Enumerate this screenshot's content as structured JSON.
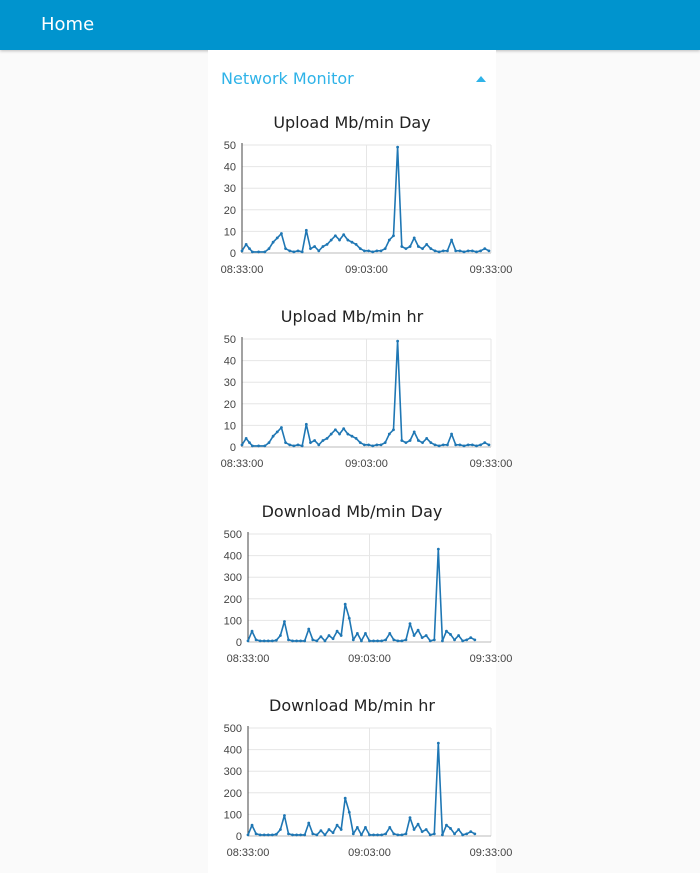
{
  "header": {
    "title": "Home"
  },
  "group": {
    "title": "Network Monitor",
    "collapse_icon": "caret-up-icon",
    "accent": "#2fb3e8"
  },
  "colors": {
    "topbar": "#0094ce",
    "series": "#1f77b4"
  },
  "charts": [
    {
      "title": "Upload Mb/min Day",
      "chart_data": {
        "type": "line",
        "title": "Upload Mb/min Day",
        "xlabel": "",
        "ylabel": "",
        "x_ticks": [
          "08:33:00",
          "09:03:00",
          "09:33:00"
        ],
        "x_range": [
          0,
          60
        ],
        "ylim": [
          0,
          50
        ],
        "y_ticks": [
          0,
          10,
          20,
          30,
          40,
          50
        ],
        "grid": true,
        "series": [
          {
            "values": [
              [
                0,
                1
              ],
              [
                1,
                4
              ],
              [
                1.8,
                2
              ],
              [
                2.5,
                0.5
              ],
              [
                4,
                0.5
              ],
              [
                5.5,
                0.5
              ],
              [
                6.5,
                2
              ],
              [
                7.5,
                5
              ],
              [
                8.5,
                7
              ],
              [
                9.5,
                9
              ],
              [
                10.5,
                2
              ],
              [
                11.5,
                1
              ],
              [
                12.5,
                0.5
              ],
              [
                13.5,
                1
              ],
              [
                14.5,
                0.5
              ],
              [
                15.5,
                10.5
              ],
              [
                16.5,
                2
              ],
              [
                17.5,
                3
              ],
              [
                18.5,
                1
              ],
              [
                19.5,
                3
              ],
              [
                20.5,
                4
              ],
              [
                21.5,
                6
              ],
              [
                22.5,
                8
              ],
              [
                23.5,
                6
              ],
              [
                24.5,
                8.5
              ],
              [
                25.5,
                6
              ],
              [
                26.5,
                5
              ],
              [
                27.5,
                4
              ],
              [
                28.5,
                2
              ],
              [
                29.5,
                1
              ],
              [
                30.5,
                1
              ],
              [
                31.5,
                0.5
              ],
              [
                32.5,
                1
              ],
              [
                33.5,
                1
              ],
              [
                34.5,
                2
              ],
              [
                35.5,
                6
              ],
              [
                36.5,
                8
              ],
              [
                37.5,
                49
              ],
              [
                38.5,
                3
              ],
              [
                39.5,
                2
              ],
              [
                40.5,
                3
              ],
              [
                41.5,
                7
              ],
              [
                42.5,
                3
              ],
              [
                43.5,
                2
              ],
              [
                44.5,
                4
              ],
              [
                45.5,
                2
              ],
              [
                46.5,
                1
              ],
              [
                47.5,
                0.5
              ],
              [
                48.5,
                1
              ],
              [
                49.5,
                1
              ],
              [
                50.5,
                6
              ],
              [
                51.5,
                1
              ],
              [
                52.5,
                1
              ],
              [
                53.5,
                0.5
              ],
              [
                54.5,
                1
              ],
              [
                55.5,
                1
              ],
              [
                56.5,
                0.5
              ],
              [
                57.5,
                1
              ],
              [
                58.5,
                2
              ],
              [
                59.5,
                1
              ]
            ]
          }
        ]
      }
    },
    {
      "title": "Upload Mb/min hr",
      "chart_data": {
        "type": "line",
        "title": "Upload Mb/min hr",
        "xlabel": "",
        "ylabel": "",
        "x_ticks": [
          "08:33:00",
          "09:03:00",
          "09:33:00"
        ],
        "x_range": [
          0,
          60
        ],
        "ylim": [
          0,
          50
        ],
        "y_ticks": [
          0,
          10,
          20,
          30,
          40,
          50
        ],
        "grid": true,
        "series": [
          {
            "values": [
              [
                0,
                1
              ],
              [
                1,
                4
              ],
              [
                1.8,
                2
              ],
              [
                2.5,
                0.5
              ],
              [
                4,
                0.5
              ],
              [
                5.5,
                0.5
              ],
              [
                6.5,
                2
              ],
              [
                7.5,
                5
              ],
              [
                8.5,
                7
              ],
              [
                9.5,
                9
              ],
              [
                10.5,
                2
              ],
              [
                11.5,
                1
              ],
              [
                12.5,
                0.5
              ],
              [
                13.5,
                1
              ],
              [
                14.5,
                0.5
              ],
              [
                15.5,
                10.5
              ],
              [
                16.5,
                2
              ],
              [
                17.5,
                3
              ],
              [
                18.5,
                1
              ],
              [
                19.5,
                3
              ],
              [
                20.5,
                4
              ],
              [
                21.5,
                6
              ],
              [
                22.5,
                8
              ],
              [
                23.5,
                6
              ],
              [
                24.5,
                8.5
              ],
              [
                25.5,
                6
              ],
              [
                26.5,
                5
              ],
              [
                27.5,
                4
              ],
              [
                28.5,
                2
              ],
              [
                29.5,
                1
              ],
              [
                30.5,
                1
              ],
              [
                31.5,
                0.5
              ],
              [
                32.5,
                1
              ],
              [
                33.5,
                1
              ],
              [
                34.5,
                2
              ],
              [
                35.5,
                6
              ],
              [
                36.5,
                8
              ],
              [
                37.5,
                49
              ],
              [
                38.5,
                3
              ],
              [
                39.5,
                2
              ],
              [
                40.5,
                3
              ],
              [
                41.5,
                7
              ],
              [
                42.5,
                3
              ],
              [
                43.5,
                2
              ],
              [
                44.5,
                4
              ],
              [
                45.5,
                2
              ],
              [
                46.5,
                1
              ],
              [
                47.5,
                0.5
              ],
              [
                48.5,
                1
              ],
              [
                49.5,
                1
              ],
              [
                50.5,
                6
              ],
              [
                51.5,
                1
              ],
              [
                52.5,
                1
              ],
              [
                53.5,
                0.5
              ],
              [
                54.5,
                1
              ],
              [
                55.5,
                1
              ],
              [
                56.5,
                0.5
              ],
              [
                57.5,
                1
              ],
              [
                58.5,
                2
              ],
              [
                59.5,
                1
              ]
            ]
          }
        ]
      }
    },
    {
      "title": "Download Mb/min Day",
      "chart_data": {
        "type": "line",
        "title": "Download Mb/min Day",
        "xlabel": "",
        "ylabel": "",
        "x_ticks": [
          "08:33:00",
          "09:03:00",
          "09:33:00"
        ],
        "x_range": [
          0,
          60
        ],
        "ylim": [
          0,
          500
        ],
        "y_ticks": [
          0,
          100,
          200,
          300,
          400,
          500
        ],
        "grid": true,
        "series": [
          {
            "values": [
              [
                0,
                5
              ],
              [
                1,
                50
              ],
              [
                2,
                10
              ],
              [
                3,
                5
              ],
              [
                4,
                5
              ],
              [
                5,
                5
              ],
              [
                6,
                5
              ],
              [
                7,
                8
              ],
              [
                8,
                30
              ],
              [
                9,
                95
              ],
              [
                10,
                10
              ],
              [
                11,
                5
              ],
              [
                12,
                5
              ],
              [
                13,
                5
              ],
              [
                14,
                5
              ],
              [
                15,
                60
              ],
              [
                16,
                10
              ],
              [
                17,
                5
              ],
              [
                18,
                25
              ],
              [
                19,
                5
              ],
              [
                20,
                30
              ],
              [
                21,
                15
              ],
              [
                22,
                50
              ],
              [
                23,
                30
              ],
              [
                24,
                175
              ],
              [
                25,
                110
              ],
              [
                26,
                10
              ],
              [
                27,
                40
              ],
              [
                28,
                5
              ],
              [
                29,
                40
              ],
              [
                30,
                5
              ],
              [
                31,
                5
              ],
              [
                32,
                5
              ],
              [
                33,
                5
              ],
              [
                34,
                10
              ],
              [
                35,
                40
              ],
              [
                36,
                10
              ],
              [
                37,
                5
              ],
              [
                38,
                5
              ],
              [
                39,
                10
              ],
              [
                40,
                85
              ],
              [
                41,
                30
              ],
              [
                42,
                55
              ],
              [
                43,
                20
              ],
              [
                44,
                30
              ],
              [
                45,
                5
              ],
              [
                46,
                10
              ],
              [
                47,
                430
              ],
              [
                48,
                5
              ],
              [
                49,
                50
              ],
              [
                50,
                35
              ],
              [
                51,
                10
              ],
              [
                52,
                30
              ],
              [
                53,
                5
              ],
              [
                54,
                10
              ],
              [
                55,
                20
              ],
              [
                56,
                10
              ]
            ]
          }
        ]
      }
    },
    {
      "title": "Download Mb/min hr",
      "chart_data": {
        "type": "line",
        "title": "Download Mb/min hr",
        "xlabel": "",
        "ylabel": "",
        "x_ticks": [
          "08:33:00",
          "09:03:00",
          "09:33:00"
        ],
        "x_range": [
          0,
          60
        ],
        "ylim": [
          0,
          500
        ],
        "y_ticks": [
          0,
          100,
          200,
          300,
          400,
          500
        ],
        "grid": true,
        "series": [
          {
            "values": [
              [
                0,
                5
              ],
              [
                1,
                50
              ],
              [
                2,
                10
              ],
              [
                3,
                5
              ],
              [
                4,
                5
              ],
              [
                5,
                5
              ],
              [
                6,
                5
              ],
              [
                7,
                8
              ],
              [
                8,
                30
              ],
              [
                9,
                95
              ],
              [
                10,
                10
              ],
              [
                11,
                5
              ],
              [
                12,
                5
              ],
              [
                13,
                5
              ],
              [
                14,
                5
              ],
              [
                15,
                60
              ],
              [
                16,
                10
              ],
              [
                17,
                5
              ],
              [
                18,
                25
              ],
              [
                19,
                5
              ],
              [
                20,
                30
              ],
              [
                21,
                15
              ],
              [
                22,
                50
              ],
              [
                23,
                30
              ],
              [
                24,
                175
              ],
              [
                25,
                110
              ],
              [
                26,
                10
              ],
              [
                27,
                40
              ],
              [
                28,
                5
              ],
              [
                29,
                40
              ],
              [
                30,
                5
              ],
              [
                31,
                5
              ],
              [
                32,
                5
              ],
              [
                33,
                5
              ],
              [
                34,
                10
              ],
              [
                35,
                40
              ],
              [
                36,
                10
              ],
              [
                37,
                5
              ],
              [
                38,
                5
              ],
              [
                39,
                10
              ],
              [
                40,
                85
              ],
              [
                41,
                30
              ],
              [
                42,
                55
              ],
              [
                43,
                20
              ],
              [
                44,
                30
              ],
              [
                45,
                5
              ],
              [
                46,
                10
              ],
              [
                47,
                430
              ],
              [
                48,
                5
              ],
              [
                49,
                50
              ],
              [
                50,
                35
              ],
              [
                51,
                10
              ],
              [
                52,
                30
              ],
              [
                53,
                5
              ],
              [
                54,
                10
              ],
              [
                55,
                20
              ],
              [
                56,
                10
              ]
            ]
          }
        ]
      }
    }
  ]
}
